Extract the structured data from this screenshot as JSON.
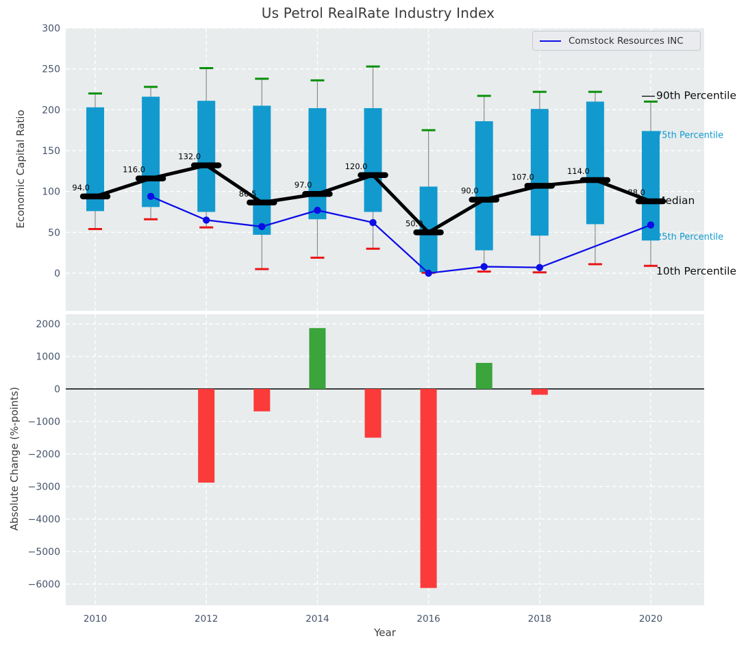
{
  "chart_data": [
    {
      "type": "boxplot",
      "title": "Us Petrol RealRate Industry Index",
      "ylabel": "Economic Capital Ratio",
      "series_name": "Comstock Resources INC",
      "legend_position": "upper right",
      "grid": "white-dashed",
      "ylim": [
        -46,
        300
      ],
      "yticks": [
        0,
        50,
        100,
        150,
        200,
        250,
        300
      ],
      "years": [
        2010,
        2011,
        2012,
        2013,
        2014,
        2015,
        2016,
        2017,
        2018,
        2019,
        2020
      ],
      "p90": [
        220,
        228,
        251,
        238,
        236,
        253,
        175,
        217,
        222,
        222,
        210
      ],
      "p75": [
        203,
        216,
        211,
        205,
        202,
        202,
        106,
        186,
        201,
        210,
        174
      ],
      "median": [
        94.0,
        116.0,
        132.0,
        86.5,
        97.0,
        120.0,
        50.0,
        90.0,
        107.0,
        114.0,
        88.0
      ],
      "median_labels": [
        "94.0",
        "116.0",
        "132.0",
        "86.5",
        "97.0",
        "120.0",
        "50.0",
        "90.0",
        "107.0",
        "114.0",
        "88.0"
      ],
      "p25": [
        76,
        81,
        75,
        47,
        66,
        75,
        1,
        28,
        46,
        60,
        40
      ],
      "p10": [
        54,
        66,
        56,
        5,
        19,
        30,
        0.5,
        2,
        1,
        11,
        9
      ],
      "company_x": [
        2011,
        2012,
        2013,
        2014,
        2015,
        2016,
        2017,
        2018,
        2020
      ],
      "company_y": [
        94,
        65,
        57,
        77,
        62,
        0,
        8,
        7,
        59
      ],
      "annotations": [
        "90th Percentile",
        "75th Percentile",
        "Median",
        "25th Percentile",
        "10th Percentile"
      ],
      "annotation_styles": [
        "black",
        "blue",
        "black",
        "blue",
        "black"
      ],
      "colors": {
        "box": "#129ACE",
        "whisker": "#8a8a8a",
        "cap_high": "#089008",
        "cap_low": "#e91414",
        "median_line": "#000000",
        "company_line": "#0d0de6",
        "annotation_blue": "#129ACE",
        "axes_bg": "#e8eced",
        "grid": "#ffffff",
        "tick_label": "#44536a"
      }
    },
    {
      "type": "bar",
      "ylabel": "Absolute Change (%-points)",
      "xlabel": "Year",
      "yticks": [
        2000,
        1000,
        0,
        -1000,
        -2000,
        -3000,
        -4000,
        -5000,
        -6000
      ],
      "xticks": [
        2010,
        2012,
        2014,
        2016,
        2018,
        2020
      ],
      "years": [
        2010,
        2011,
        2012,
        2013,
        2014,
        2015,
        2016,
        2017,
        2018,
        2019,
        2020
      ],
      "values": [
        null,
        null,
        -2880,
        -690,
        1870,
        -1500,
        -6120,
        800,
        -180,
        null,
        null
      ],
      "zero_line": true,
      "colors": {
        "positive": "#3ba43b",
        "negative": "#fb3a3a"
      }
    }
  ]
}
